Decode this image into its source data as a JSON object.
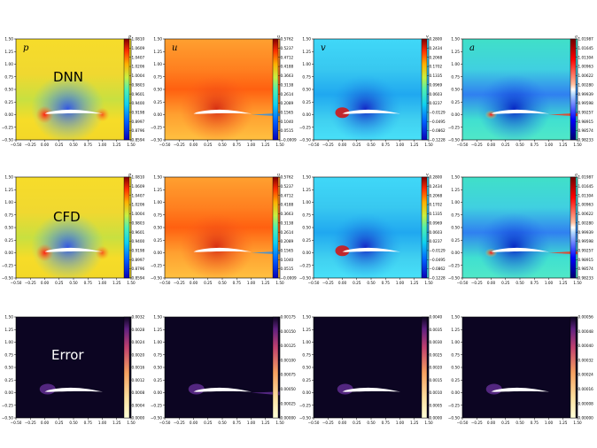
{
  "row_labels": [
    "DNN",
    "CFD",
    "Error"
  ],
  "columns": [
    {
      "symbol": "p",
      "range": [
        0.8594,
        1.081
      ],
      "colorbar_ticks": [
        "1.0810",
        "1.0609",
        "1.0407",
        "1.0206",
        "1.0004",
        "0.9803",
        "0.9601",
        "0.9400",
        "0.9198",
        "0.8997",
        "0.8796",
        "0.8594"
      ],
      "error_ticks": [
        "0.0032",
        "0.0028",
        "0.0024",
        "0.0020",
        "0.0016",
        "0.0012",
        "0.0008",
        "0.0004",
        "0.0000"
      ]
    },
    {
      "symbol": "u",
      "range": [
        -0.0009,
        0.5762
      ],
      "colorbar_ticks": [
        "0.5762",
        "0.5237",
        "0.4712",
        "0.4188",
        "0.3663",
        "0.3138",
        "0.2614",
        "0.2089",
        "0.1565",
        "0.1040",
        "0.0515",
        "−0.0009"
      ],
      "error_ticks": [
        "0.00175",
        "0.00150",
        "0.00125",
        "0.00100",
        "0.00075",
        "0.00050",
        "0.00025",
        "0.00000"
      ]
    },
    {
      "symbol": "v",
      "range": [
        -0.1228,
        0.28
      ],
      "colorbar_ticks": [
        "0.2800",
        "0.2434",
        "0.2068",
        "0.1702",
        "0.1335",
        "0.0969",
        "0.0603",
        "0.0237",
        "−0.0129",
        "−0.0495",
        "−0.0862",
        "−0.1228"
      ],
      "error_ticks": [
        "0.0040",
        "0.0035",
        "0.0030",
        "0.0025",
        "0.0020",
        "0.0015",
        "0.0010",
        "0.0005",
        "0.0000"
      ]
    },
    {
      "symbol": "a",
      "range": [
        0.98233,
        1.01987
      ],
      "colorbar_ticks": [
        "1.01987",
        "1.01645",
        "1.01304",
        "1.00963",
        "1.00622",
        "1.00280",
        "0.99939",
        "0.99598",
        "0.99257",
        "0.98915",
        "0.98574",
        "0.98233"
      ],
      "error_ticks": [
        "0.00056",
        "0.00048",
        "0.00040",
        "0.00032",
        "0.00024",
        "0.00016",
        "0.00008",
        "0.00000"
      ]
    }
  ],
  "axes": {
    "x_ticks": [
      "−0.50",
      "−0.25",
      "0.00",
      "0.25",
      "0.50",
      "0.75",
      "1.00",
      "1.25",
      "1.50"
    ],
    "y_ticks": [
      "1.50",
      "1.25",
      "1.00",
      "0.75",
      "0.50",
      "0.25",
      "0.00",
      "−0.25",
      "−0.50"
    ],
    "xlim": [
      -0.5,
      1.5
    ],
    "ylim": [
      -0.5,
      1.5
    ]
  },
  "colors": {
    "field_low": "#1f0fe0",
    "field_mid": "#22d8e8",
    "field_high": "#d01010",
    "error_bg": "#0c0522",
    "error_blob": "#5a2a8a",
    "airfoil": "#ffffff"
  }
}
